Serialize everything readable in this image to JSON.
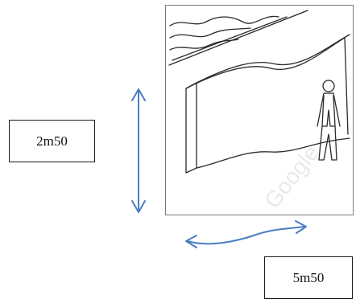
{
  "labels": {
    "height": "2m50",
    "width": "5m50"
  },
  "watermark": "Google",
  "colors": {
    "arrow": "#4a7ec2",
    "box_border": "#1a1a1a",
    "frame_border": "#7a7a7a",
    "sketch_line": "#2a2a2a"
  },
  "icons": {
    "height_arrow": "double-headed-vertical-arrow",
    "width_arrow": "curved-double-headed-arrow",
    "person": "standing-person-sketch"
  }
}
